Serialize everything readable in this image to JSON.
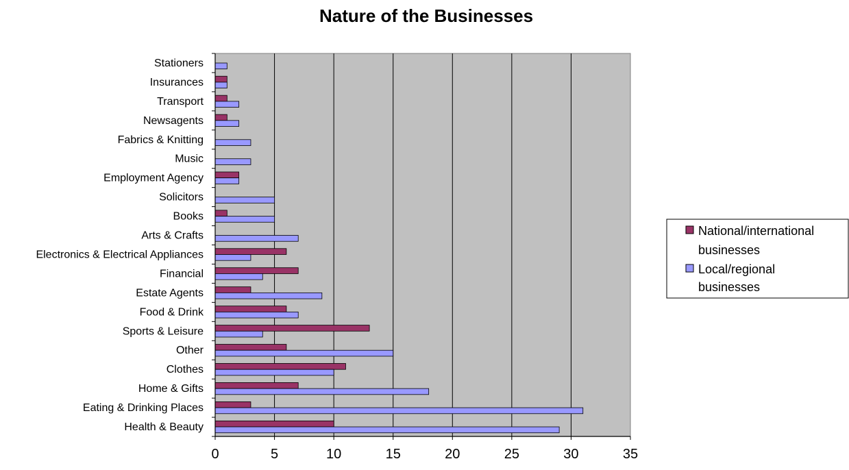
{
  "chart_data": {
    "type": "bar",
    "orientation": "horizontal",
    "title": "Nature of the Businesses",
    "xlabel": "",
    "ylabel": "",
    "xlim": [
      0,
      35
    ],
    "x_ticks": [
      0,
      5,
      10,
      15,
      20,
      25,
      30,
      35
    ],
    "grid": "vertical",
    "legend_position": "right",
    "plot_background": "#c0c0c0",
    "categories": [
      "Stationers",
      "Insurances",
      "Transport",
      "Newsagents",
      "Fabrics & Knitting",
      "Music",
      "Employment Agency",
      "Solicitors",
      "Books",
      "Arts & Crafts",
      "Electronics & Electrical Appliances",
      "Financial",
      "Estate Agents",
      "Food & Drink",
      "Sports & Leisure",
      "Other",
      "Clothes",
      "Home & Gifts",
      "Eating & Drinking Places",
      "Health & Beauty"
    ],
    "series": [
      {
        "name": "National/international businesses",
        "color": "#993366",
        "values": [
          0,
          1,
          1,
          1,
          0,
          0,
          2,
          0,
          1,
          0,
          6,
          7,
          3,
          6,
          13,
          6,
          11,
          7,
          3,
          10
        ]
      },
      {
        "name": "Local/regional businesses",
        "color": "#9999ff",
        "values": [
          1,
          1,
          2,
          2,
          3,
          3,
          2,
          5,
          5,
          7,
          3,
          4,
          9,
          7,
          4,
          15,
          10,
          18,
          31,
          29
        ]
      }
    ],
    "legend": [
      {
        "line1": "National/international",
        "line2": "businesses"
      },
      {
        "line1": "Local/regional",
        "line2": "businesses"
      }
    ]
  }
}
